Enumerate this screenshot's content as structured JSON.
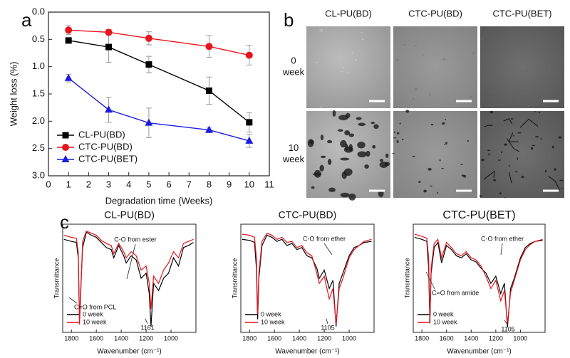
{
  "panel_labels": [
    "a",
    "b",
    "c"
  ],
  "sem_panel": {
    "columns": [
      "CL-PU(BD)",
      "CTC-PU(BD)",
      "CTC-PU(BET)"
    ],
    "rows": [
      "0\nweek",
      "10\nweek"
    ]
  },
  "chart_data": [
    {
      "type": "line",
      "x_label": "Degradation time (Weeks)",
      "y_label": "Weight loss (%)",
      "x": [
        1,
        3,
        5,
        8,
        10
      ],
      "xlim": [
        0,
        11
      ],
      "xticks": [
        0,
        1,
        2,
        3,
        4,
        5,
        6,
        7,
        8,
        9,
        10,
        11
      ],
      "ylim": [
        0,
        3
      ],
      "y_inverted": true,
      "yticks": [
        {
          "value": 0,
          "label": "0.0"
        },
        0.5,
        {
          "value": 1,
          "label": "1.0"
        },
        1.5,
        {
          "value": 2,
          "label": "2.0"
        },
        2.5,
        {
          "value": 3,
          "label": "3.0"
        }
      ],
      "legend": "lower left",
      "series": [
        {
          "name": "CL-PU(BD)",
          "color": "#000000",
          "marker": "square",
          "values": [
            0.52,
            0.64,
            0.96,
            1.44,
            2.02
          ],
          "errors": [
            0.03,
            0.28,
            0.15,
            0.25,
            0.18
          ]
        },
        {
          "name": "CTC-PU(BD)",
          "color": "#e8141b",
          "marker": "circle",
          "values": [
            0.33,
            0.37,
            0.48,
            0.63,
            0.79
          ],
          "errors": [
            0.08,
            0.05,
            0.12,
            0.2,
            0.18
          ]
        },
        {
          "name": "CTC-PU(BET)",
          "color": "#1c1ce0",
          "marker": "triangle",
          "values": [
            1.21,
            1.79,
            2.03,
            2.16,
            2.36
          ],
          "errors": [
            0.07,
            0.23,
            0.27,
            0.05,
            0.12
          ]
        }
      ]
    },
    {
      "type": "spectrum",
      "title": "CL-PU(BD)",
      "x_label": "Wavenumber (cm⁻¹)",
      "y_label": "Transmittance",
      "xlim": [
        1870,
        800
      ],
      "xticks": [
        1800,
        1600,
        1400,
        1200,
        1000
      ],
      "ylim": [
        0,
        100
      ],
      "legend": "lower left",
      "annotations": [
        "C-O from ester",
        "C=O from PCL",
        "1161"
      ],
      "x": [
        1860,
        1800,
        1760,
        1745,
        1735,
        1725,
        1710,
        1680,
        1640,
        1600,
        1560,
        1520,
        1480,
        1460,
        1420,
        1380,
        1360,
        1320,
        1280,
        1240,
        1200,
        1175,
        1161,
        1140,
        1100,
        1060,
        1020,
        980,
        940,
        900,
        860,
        820
      ],
      "series": [
        {
          "name": "0 week",
          "color": "#000000",
          "values": [
            88,
            86,
            85,
            70,
            8,
            40,
            80,
            95,
            92,
            90,
            85,
            80,
            78,
            70,
            82,
            72,
            65,
            72,
            68,
            50,
            55,
            35,
            3,
            45,
            38,
            50,
            55,
            70,
            62,
            80,
            82,
            85
          ]
        },
        {
          "name": "10 week",
          "color": "#e8141b",
          "values": [
            92,
            90,
            89,
            75,
            5,
            35,
            86,
            96,
            94,
            92,
            87,
            84,
            82,
            74,
            84,
            76,
            70,
            76,
            72,
            58,
            62,
            45,
            20,
            52,
            45,
            58,
            65,
            76,
            70,
            84,
            86,
            88
          ]
        }
      ]
    },
    {
      "type": "spectrum",
      "title": "CTC-PU(BD)",
      "x_label": "Wavenumber (cm⁻¹)",
      "y_label": "Transmittance",
      "xlim": [
        1870,
        800
      ],
      "xticks": [
        1800,
        1600,
        1400,
        1200,
        1000
      ],
      "ylim": [
        0,
        100
      ],
      "legend": "lower left",
      "annotations": [
        "C-O from ether",
        "1105"
      ],
      "x": [
        1860,
        1800,
        1760,
        1745,
        1735,
        1725,
        1700,
        1660,
        1620,
        1580,
        1540,
        1500,
        1460,
        1420,
        1380,
        1340,
        1300,
        1260,
        1240,
        1200,
        1160,
        1130,
        1105,
        1080,
        1050,
        1000,
        960,
        920,
        880,
        820
      ],
      "series": [
        {
          "name": "0 week",
          "color": "#000000",
          "values": [
            88,
            87,
            85,
            60,
            10,
            50,
            82,
            92,
            90,
            86,
            88,
            82,
            84,
            78,
            80,
            72,
            70,
            60,
            50,
            58,
            40,
            48,
            3,
            45,
            55,
            72,
            80,
            82,
            85,
            86
          ]
        },
        {
          "name": "10 week",
          "color": "#e8141b",
          "values": [
            93,
            92,
            90,
            70,
            15,
            55,
            86,
            94,
            92,
            88,
            90,
            85,
            86,
            80,
            82,
            75,
            72,
            55,
            45,
            52,
            30,
            40,
            5,
            40,
            50,
            70,
            78,
            82,
            86,
            88
          ]
        }
      ]
    },
    {
      "type": "spectrum",
      "title": "CTC-PU(BET)",
      "x_label": "Wavenumber (cm⁻¹)",
      "y_label": "Transmittance",
      "xlim": [
        1870,
        800
      ],
      "xticks": [
        1800,
        1600,
        1400,
        1200,
        1000
      ],
      "ylim": [
        0,
        100
      ],
      "legend": "lower left",
      "annotations": [
        "C-O from ether",
        "C=O from amide",
        "1105"
      ],
      "x": [
        1860,
        1800,
        1760,
        1745,
        1735,
        1725,
        1700,
        1670,
        1640,
        1600,
        1560,
        1520,
        1480,
        1440,
        1400,
        1360,
        1320,
        1280,
        1240,
        1200,
        1160,
        1130,
        1105,
        1080,
        1050,
        1000,
        960,
        920,
        880,
        820
      ],
      "series": [
        {
          "name": "0 week",
          "color": "#000000",
          "values": [
            90,
            88,
            86,
            60,
            6,
            55,
            80,
            85,
            65,
            82,
            78,
            72,
            70,
            74,
            68,
            66,
            60,
            55,
            45,
            52,
            35,
            45,
            2,
            40,
            50,
            70,
            80,
            84,
            86,
            87
          ]
        },
        {
          "name": "10 week",
          "color": "#e8141b",
          "values": [
            93,
            91,
            89,
            70,
            10,
            60,
            84,
            88,
            70,
            85,
            80,
            74,
            72,
            76,
            70,
            68,
            62,
            52,
            40,
            48,
            28,
            38,
            6,
            36,
            48,
            68,
            78,
            83,
            86,
            88
          ]
        }
      ]
    }
  ]
}
